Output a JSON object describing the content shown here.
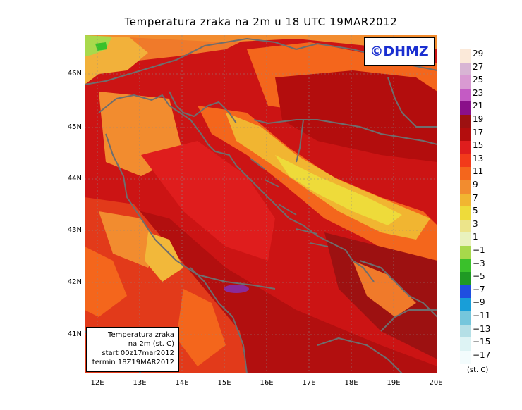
{
  "title": "Temperatura zraka na 2m u 18 UTC 19MAR2012",
  "logo": "©DHMZ",
  "info_box": {
    "line1": "Temperatura zraka",
    "line2": "na 2m (st. C)",
    "line3": "start 00z17mar2012",
    "line4": "termin 18Z19MAR2012"
  },
  "lat_labels": [
    "46N",
    "45N",
    "44N",
    "43N",
    "42N",
    "41N"
  ],
  "lon_labels": [
    "12E",
    "13E",
    "14E",
    "15E",
    "16E",
    "17E",
    "18E",
    "19E",
    "20E"
  ],
  "legend": {
    "labels": [
      "29",
      "27",
      "25",
      "23",
      "21",
      "19",
      "17",
      "15",
      "13",
      "11",
      "9",
      "7",
      "5",
      "3",
      "1",
      "−1",
      "−3",
      "−5",
      "−7",
      "−9",
      "−11",
      "−13",
      "−15",
      "−17"
    ],
    "colors": [
      "#fbe9d9",
      "#d8b5d4",
      "#d99ad2",
      "#c45bc4",
      "#8a0f8a",
      "#9d1111",
      "#b30d0d",
      "#df1d1d",
      "#f23a1a",
      "#f4661c",
      "#f28c2f",
      "#f1b531",
      "#eedb3a",
      "#ece48a",
      "#e9f2bd",
      "#a7d94b",
      "#3ac12b",
      "#1f9a24",
      "#1f4fe0",
      "#189ed8",
      "#75c6dc",
      "#b4dfe6",
      "#ddf3f4",
      "#f3fcfd"
    ],
    "units": "(st. C)"
  }
}
